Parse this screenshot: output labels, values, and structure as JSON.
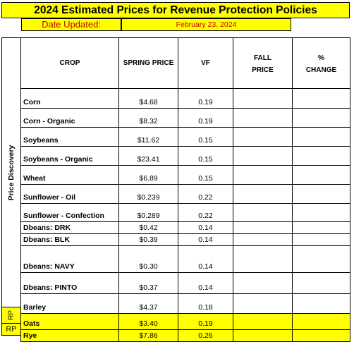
{
  "title": "2024 Estimated Prices for Revenue Protection Policies",
  "date_label": "Date Updated:",
  "date_value": "February 23, 2024",
  "side_label": "Price Discovery",
  "rp_label": "RP",
  "columns": {
    "crop": "CROP",
    "spring_price": "SPRING PRICE",
    "vf": "VF",
    "fall_price": "FALL\nPRICE",
    "pct_change": "%\nCHANGE"
  },
  "rows": [
    {
      "crop": "Corn",
      "spring_price": "$4.68",
      "vf": "0.19"
    },
    {
      "crop": "Corn - Organic",
      "spring_price": "$8.32",
      "vf": "0.19"
    },
    {
      "crop": "Soybeans",
      "spring_price": "$11.62",
      "vf": "0.15"
    },
    {
      "crop": "Soybeans - Organic",
      "spring_price": "$23.41",
      "vf": "0.15"
    },
    {
      "crop": "Wheat",
      "spring_price": "$6.89",
      "vf": "0.15"
    },
    {
      "crop": "Sunflower - Oil",
      "spring_price": "$0.239",
      "vf": "0.22"
    },
    {
      "crop": "Sunflower - Confection",
      "spring_price": "$0.289",
      "vf": "0.22"
    },
    {
      "crop": "Dbeans: DRK",
      "spring_price": "$0.42",
      "vf": "0.14"
    },
    {
      "crop": "Dbeans: BLK",
      "spring_price": "$0.39",
      "vf": "0.14"
    },
    {
      "crop": "Dbeans: NAVY",
      "spring_price": "$0.30",
      "vf": "0.14"
    },
    {
      "crop": "Dbeans: PINTO",
      "spring_price": "$0.37",
      "vf": "0.14"
    },
    {
      "crop": "Barley",
      "spring_price": "$4.37",
      "vf": "0.18"
    },
    {
      "crop": "Oats",
      "spring_price": "$3.40",
      "vf": "0.19",
      "highlight": true
    },
    {
      "crop": "Rye",
      "spring_price": "$7.86",
      "vf": "0.26",
      "highlight": true
    }
  ]
}
